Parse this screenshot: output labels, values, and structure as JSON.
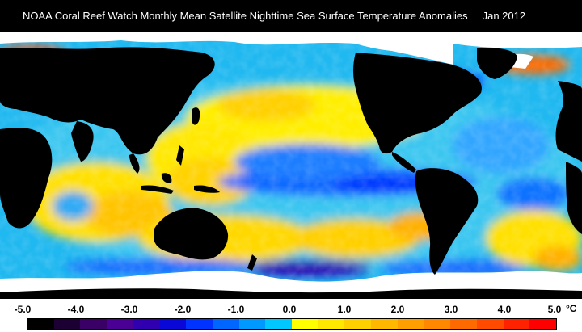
{
  "header": {
    "title": "NOAA Coral Reef Watch Monthly Mean Satellite Nighttime Sea Surface Temperature Anomalies",
    "date": "Jan 2012"
  },
  "map": {
    "variable": "nighttime sea surface temperature anomaly",
    "units": "°C",
    "land_color": "#000000",
    "sea_ice_color": "#ffffff",
    "dominant_pattern": "La Niña cool tongue across central and eastern equatorial Pacific; warm anomalies in western Pacific, Indian Ocean and around Australia"
  },
  "legend": {
    "unit_label": "°C",
    "ticks": [
      {
        "label": "-5.0",
        "value": -5.0
      },
      {
        "label": "-4.0",
        "value": -4.0
      },
      {
        "label": "-3.0",
        "value": -3.0
      },
      {
        "label": "-2.0",
        "value": -2.0
      },
      {
        "label": "-1.0",
        "value": -1.0
      },
      {
        "label": "0.0",
        "value": 0.0
      },
      {
        "label": "1.0",
        "value": 1.0
      },
      {
        "label": "2.0",
        "value": 2.0
      },
      {
        "label": "3.0",
        "value": 3.0
      },
      {
        "label": "4.0",
        "value": 4.0
      },
      {
        "label": "5.0",
        "value": 5.0
      }
    ],
    "color_stops": [
      "#000000",
      "#1c0033",
      "#3a0066",
      "#4b0095",
      "#3000b0",
      "#0a08d6",
      "#0033ff",
      "#0066ff",
      "#0099ff",
      "#00c8ff",
      "#ffff00",
      "#ffe800",
      "#ffd000",
      "#ffb800",
      "#ffa000",
      "#ff8800",
      "#ff6a00",
      "#ff4a00",
      "#ff2200",
      "#ff0000"
    ]
  }
}
